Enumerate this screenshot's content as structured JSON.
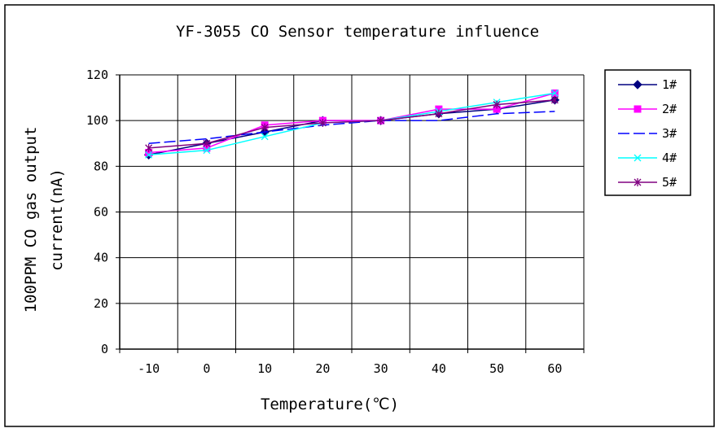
{
  "chart_data": {
    "type": "line",
    "title": "YF-3055 CO Sensor temperature influence",
    "xlabel": "Temperature(℃)",
    "ylabel_lines": [
      "100PPM CO gas output",
      "current(nA)"
    ],
    "x": [
      "-10",
      "0",
      "10",
      "20",
      "30",
      "40",
      "50",
      "60"
    ],
    "ylim": [
      0,
      120
    ],
    "yticks": [
      "0",
      "20",
      "40",
      "60",
      "80",
      "100",
      "120"
    ],
    "grid": true,
    "legend_position": "right",
    "series": [
      {
        "name": "1#",
        "color": "#000080",
        "marker": "diamond",
        "dash": "solid",
        "values": [
          85,
          90,
          95,
          100,
          100,
          103,
          105,
          109
        ]
      },
      {
        "name": "2#",
        "color": "#ff00ff",
        "marker": "square",
        "dash": "solid",
        "values": [
          86,
          88,
          98,
          100,
          100,
          105,
          105,
          112
        ]
      },
      {
        "name": "3#",
        "color": "#0000ff",
        "marker": "none",
        "dash": "dashed",
        "values": [
          90,
          92,
          95,
          98,
          100,
          100,
          103,
          104
        ]
      },
      {
        "name": "4#",
        "color": "#00ffff",
        "marker": "x",
        "dash": "solid",
        "values": [
          85,
          87,
          93,
          99,
          100,
          104,
          108,
          112
        ]
      },
      {
        "name": "5#",
        "color": "#800080",
        "marker": "star",
        "dash": "solid",
        "values": [
          88,
          90,
          97,
          99,
          100,
          103,
          107,
          109
        ]
      }
    ]
  }
}
